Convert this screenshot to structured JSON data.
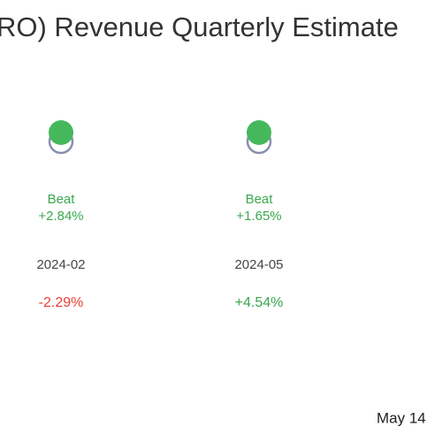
{
  "title": "RO) Revenue Quarterly Estimate",
  "columns": [
    {
      "result": "Beat",
      "surprise": "+2.84%",
      "period": "2024-02",
      "change": "-2.29%",
      "change_dir": "down"
    },
    {
      "result": "Beat",
      "surprise": "+1.65%",
      "period": "2024-05",
      "change": "+4.54%",
      "change_dir": "up"
    }
  ],
  "footer": "May 14"
}
